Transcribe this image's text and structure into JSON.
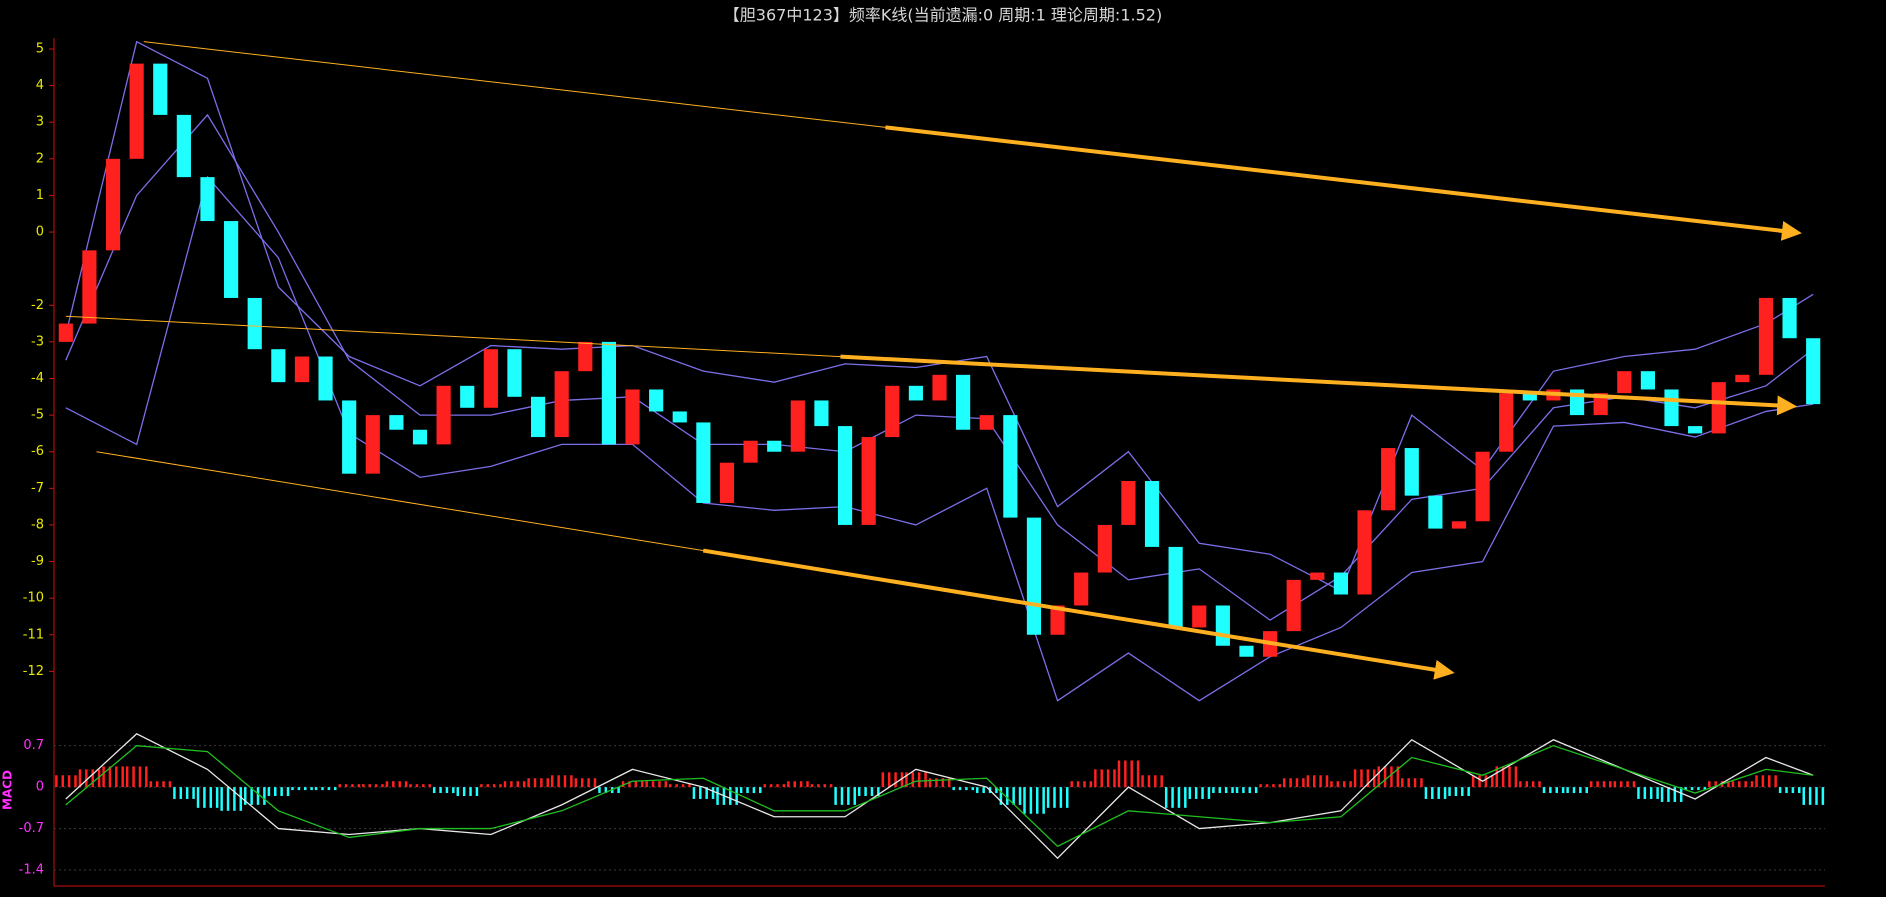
{
  "chart_data": [
    {
      "type": "candlestick",
      "title": "【胆367中123】频率K线(当前遗漏:0 周期:1 理论周期:1.52)",
      "open": [
        -3,
        -2.5,
        -0.5,
        2,
        4.6,
        3.2,
        1.5,
        0.3,
        -1.8,
        -3.2,
        -4.1,
        -3.4,
        -4.6,
        -6.6,
        -5,
        -5.4,
        -5.8,
        -4.2,
        -4.8,
        -3.2,
        -4.5,
        -5.6,
        -3.8,
        -3,
        -5.8,
        -4.3,
        -4.9,
        -5.2,
        -7.4,
        -6.3,
        -5.7,
        -6,
        -4.6,
        -5.3,
        -8,
        -5.6,
        -4.2,
        -4.6,
        -3.9,
        -5.4,
        -5,
        -7.8,
        -11,
        -10.2,
        -9.3,
        -8,
        -6.8,
        -8.6,
        -10.8,
        -10.2,
        -11.3,
        -11.6,
        -10.9,
        -9.5,
        -9.3,
        -9.9,
        -7.6,
        -5.9,
        -7.2,
        -8.1,
        -7.9,
        -6,
        -4.4,
        -4.6,
        -4.3,
        -5,
        -4.4,
        -3.8,
        -4.3,
        -5.3,
        -5.5,
        -4.1,
        -3.9,
        -1.8,
        -2.9
      ],
      "close": [
        -2.5,
        -0.5,
        2,
        4.6,
        3.2,
        1.5,
        0.3,
        -1.8,
        -3.2,
        -4.1,
        -3.4,
        -4.6,
        -6.6,
        -5,
        -5.4,
        -5.8,
        -4.2,
        -4.8,
        -3.2,
        -4.5,
        -5.6,
        -3.8,
        -3,
        -5.8,
        -4.3,
        -4.9,
        -5.2,
        -7.4,
        -6.3,
        -5.7,
        -6,
        -4.6,
        -5.3,
        -8,
        -5.6,
        -4.2,
        -4.6,
        -3.9,
        -5.4,
        -5,
        -7.8,
        -11,
        -10.2,
        -9.3,
        -8,
        -6.8,
        -8.6,
        -10.8,
        -10.2,
        -11.3,
        -11.6,
        -10.9,
        -9.5,
        -9.3,
        -9.9,
        -7.6,
        -5.9,
        -7.2,
        -8.1,
        -7.9,
        -6,
        -4.4,
        -4.6,
        -4.3,
        -5,
        -4.4,
        -3.8,
        -4.3,
        -5.3,
        -5.5,
        -4.1,
        -3.9,
        -1.8,
        -2.9,
        -4.7
      ],
      "up_color": "#ff2020",
      "down_color": "#20ffff",
      "lines": [
        {
          "color": "#7b6fe8",
          "x": [
            0,
            3,
            6,
            9,
            12,
            15,
            18,
            21,
            24,
            27,
            30,
            33,
            36,
            39,
            42,
            45,
            48,
            51,
            54,
            57,
            60,
            63,
            66,
            69,
            72,
            74
          ],
          "values": [
            -2.8,
            5.2,
            4.2,
            -1.5,
            -3.4,
            -4.2,
            -3.1,
            -3.2,
            -3.1,
            -3.8,
            -4.1,
            -3.6,
            -3.7,
            -3.4,
            -7.5,
            -6,
            -8.5,
            -8.8,
            -9.8,
            -5,
            -6.5,
            -3.8,
            -3.4,
            -3.2,
            -2.5,
            -1.7
          ]
        },
        {
          "color": "#7b6fe8",
          "x": [
            0,
            3,
            6,
            9,
            12,
            15,
            18,
            21,
            24,
            27,
            30,
            33,
            36,
            39,
            42,
            45,
            48,
            51,
            54,
            57,
            60,
            63,
            66,
            69,
            72,
            74
          ],
          "values": [
            -3.5,
            1,
            3.2,
            0,
            -3.5,
            -5,
            -5,
            -4.6,
            -4.5,
            -5.8,
            -5.8,
            -6,
            -5,
            -5.1,
            -8,
            -9.5,
            -9.2,
            -10.6,
            -9.4,
            -7.3,
            -7,
            -4.8,
            -4.5,
            -4.8,
            -4.2,
            -3.2
          ]
        },
        {
          "color": "#7b6fe8",
          "x": [
            0,
            3,
            6,
            9,
            12,
            15,
            18,
            21,
            24,
            27,
            30,
            33,
            36,
            39,
            42,
            45,
            48,
            51,
            54,
            57,
            60,
            63,
            66,
            69,
            72,
            74
          ],
          "values": [
            -4.8,
            -5.8,
            1.5,
            -0.7,
            -5.5,
            -6.7,
            -6.4,
            -5.8,
            -5.8,
            -7.4,
            -7.6,
            -7.5,
            -8,
            -7,
            -12.8,
            -11.5,
            -12.8,
            -11.6,
            -10.8,
            -9.3,
            -9,
            -5.3,
            -5.2,
            -5.6,
            -4.9,
            -4.7
          ]
        }
      ],
      "trend_lines": [
        {
          "color": "#ffb020",
          "x": [
            3.3,
            73.1
          ],
          "y": [
            5.2,
            0
          ]
        },
        {
          "color": "#ffb020",
          "x": [
            0,
            72.9
          ],
          "y": [
            -2.3,
            -4.75
          ]
        },
        {
          "color": "#ffb020",
          "x": [
            1.3,
            58.4
          ],
          "y": [
            -6,
            -12
          ]
        }
      ],
      "ylim": [
        -13,
        5.3
      ],
      "yticks": [
        5,
        4,
        3,
        2,
        1,
        0,
        -2,
        -3,
        -4,
        -5,
        -6,
        -7,
        -8,
        -9,
        -10,
        -11,
        -12
      ]
    },
    {
      "type": "macd",
      "axis_label": "MACD",
      "values": [
        0.2,
        0.3,
        0.35,
        0.35,
        0.1,
        -0.2,
        -0.35,
        -0.4,
        -0.3,
        -0.15,
        -0.05,
        -0.05,
        0.05,
        0.05,
        0.1,
        0.05,
        -0.1,
        -0.15,
        0.05,
        0.1,
        0.15,
        0.2,
        0.15,
        -0.1,
        0.1,
        0.1,
        0.05,
        -0.2,
        -0.3,
        -0.1,
        0.05,
        0.1,
        0.05,
        -0.3,
        -0.15,
        0.25,
        0.25,
        0.15,
        -0.05,
        -0.1,
        -0.3,
        -0.45,
        -0.35,
        0.1,
        0.3,
        0.45,
        0.2,
        -0.35,
        -0.2,
        -0.1,
        -0.1,
        0.05,
        0.15,
        0.2,
        0.1,
        0.3,
        0.35,
        0.15,
        -0.2,
        -0.15,
        0.2,
        0.35,
        0.1,
        -0.1,
        -0.1,
        0.1,
        0.1,
        -0.2,
        -0.25,
        -0.05,
        0.1,
        0.1,
        0.2,
        -0.1,
        -0.3
      ],
      "up_color": "#ff2020",
      "down_color": "#20ffff",
      "lines": [
        {
          "color": "#e8e8e8",
          "x": [
            0,
            3,
            6,
            9,
            12,
            15,
            18,
            21,
            24,
            27,
            30,
            33,
            36,
            39,
            42,
            45,
            48,
            51,
            54,
            57,
            60,
            63,
            66,
            69,
            72,
            74
          ],
          "values": [
            -0.2,
            0.9,
            0.3,
            -0.7,
            -0.8,
            -0.7,
            -0.8,
            -0.3,
            0.3,
            0,
            -0.5,
            -0.5,
            0.3,
            0,
            -1.2,
            0,
            -0.7,
            -0.6,
            -0.4,
            0.8,
            0.1,
            0.8,
            0.3,
            -0.2,
            0.5,
            0.2
          ]
        },
        {
          "color": "#20c020",
          "x": [
            0,
            3,
            6,
            9,
            12,
            15,
            18,
            21,
            24,
            27,
            30,
            33,
            36,
            39,
            42,
            45,
            48,
            51,
            54,
            57,
            60,
            63,
            66,
            69,
            72,
            74
          ],
          "values": [
            -0.3,
            0.7,
            0.6,
            -0.4,
            -0.85,
            -0.7,
            -0.7,
            -0.4,
            0.1,
            0.15,
            -0.4,
            -0.4,
            0.1,
            0.15,
            -1,
            -0.4,
            -0.5,
            -0.6,
            -0.5,
            0.5,
            0.2,
            0.7,
            0.3,
            -0.1,
            0.3,
            0.2
          ]
        }
      ],
      "ylim": [
        -1.67,
        1.1
      ],
      "yticks": [
        0.7,
        0,
        -0.7,
        -1.4
      ]
    }
  ]
}
